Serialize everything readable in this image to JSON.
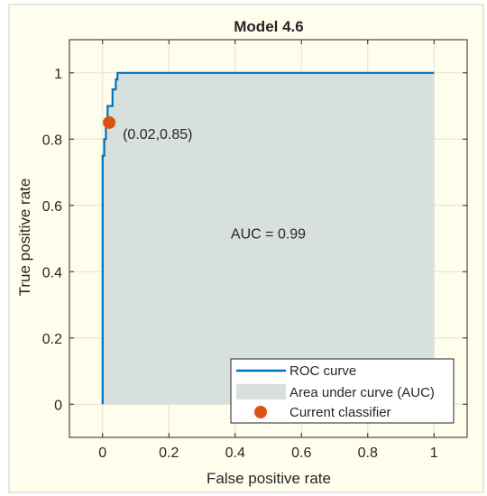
{
  "chart_data": {
    "type": "line",
    "title": "Model 4.6",
    "xlabel": "False positive rate",
    "ylabel": "True positive rate",
    "xlim": [
      -0.1,
      1.1
    ],
    "ylim": [
      -0.1,
      1.1
    ],
    "xticks": [
      0,
      0.2,
      0.4,
      0.6,
      0.8,
      1
    ],
    "xtick_labels": [
      "0",
      "0.2",
      "0.4",
      "0.6",
      "0.8",
      "1"
    ],
    "yticks": [
      0,
      0.2,
      0.4,
      0.6,
      0.8,
      1
    ],
    "ytick_labels": [
      "0",
      "0.2",
      "0.4",
      "0.6",
      "0.8",
      "1"
    ],
    "grid": true,
    "series": [
      {
        "name": "ROC curve",
        "x": [
          0,
          0,
          0.005,
          0.005,
          0.01,
          0.01,
          0.015,
          0.015,
          0.02,
          0.02,
          0.03,
          0.03,
          0.04,
          0.04,
          0.045,
          0.045,
          1
        ],
        "y": [
          0,
          0.75,
          0.75,
          0.8,
          0.8,
          0.85,
          0.85,
          0.9,
          0.9,
          0.9,
          0.9,
          0.95,
          0.95,
          0.98,
          0.98,
          1.0,
          1.0
        ]
      }
    ],
    "area_label": "Area under curve (AUC)",
    "current_classifier": {
      "name": "Current classifier",
      "x": 0.02,
      "y": 0.85,
      "label": "(0.02,0.85)"
    },
    "annotation": "AUC = 0.99",
    "legend_position": "bottom-right",
    "colors": {
      "roc": "#0072BD",
      "area": "#D7E0DC",
      "point": "#D95319",
      "plot_background": "#FFFDEB",
      "figure_background": "#FFFDEB",
      "grid": "#E3E1D0"
    }
  }
}
